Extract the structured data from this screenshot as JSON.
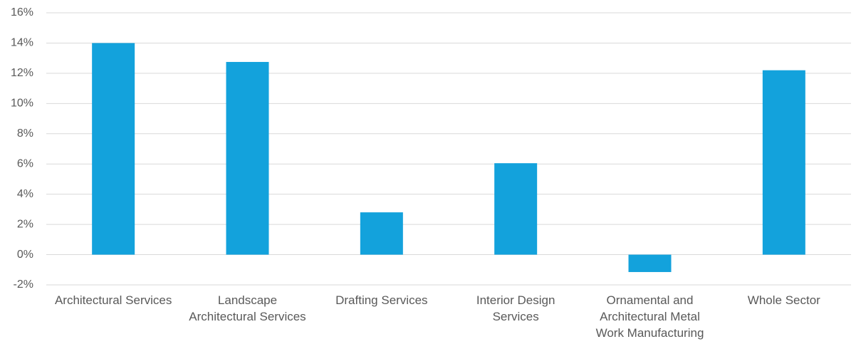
{
  "chart_data": {
    "type": "bar",
    "categories": [
      "Architectural Services",
      "Landscape Architectural Services",
      "Drafting Services",
      "Interior Design Services",
      "Ornamental and Architectural Metal Work Manufacturing",
      "Whole Sector"
    ],
    "values": [
      14.0,
      12.75,
      2.8,
      6.05,
      -1.15,
      12.2
    ],
    "color": "#13a2dc",
    "ylim": [
      -2,
      16
    ],
    "yticks": [
      {
        "value": -2,
        "label": "-2%"
      },
      {
        "value": 0,
        "label": "0%"
      },
      {
        "value": 2,
        "label": "2%"
      },
      {
        "value": 4,
        "label": "4%"
      },
      {
        "value": 6,
        "label": "6%"
      },
      {
        "value": 8,
        "label": "8%"
      },
      {
        "value": 10,
        "label": "10%"
      },
      {
        "value": 12,
        "label": "12%"
      },
      {
        "value": 14,
        "label": "14%"
      },
      {
        "value": 16,
        "label": "16%"
      }
    ],
    "grid": true
  }
}
